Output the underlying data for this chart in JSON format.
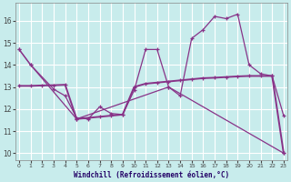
{
  "xlabel": "Windchill (Refroidissement éolien,°C)",
  "background_color": "#c8ecec",
  "grid_color": "#b8dada",
  "line_color": "#883388",
  "ylim": [
    9.7,
    16.8
  ],
  "xlim": [
    -0.3,
    23.3
  ],
  "yticks": [
    10,
    11,
    12,
    13,
    14,
    15,
    16
  ],
  "xticks": [
    0,
    1,
    2,
    3,
    4,
    5,
    6,
    7,
    8,
    9,
    10,
    11,
    12,
    13,
    14,
    15,
    16,
    17,
    18,
    19,
    20,
    21,
    22,
    23
  ],
  "line1_x": [
    0,
    1,
    3,
    4,
    5,
    6,
    7,
    8,
    9,
    10,
    11,
    12,
    13,
    14,
    15,
    16,
    17,
    18,
    19,
    20,
    21,
    22,
    23
  ],
  "line1_y": [
    14.7,
    14.0,
    12.9,
    12.6,
    11.6,
    11.55,
    12.1,
    11.8,
    11.75,
    12.85,
    14.7,
    14.7,
    13.0,
    12.6,
    15.2,
    15.6,
    16.2,
    16.1,
    16.3,
    14.0,
    13.6,
    13.5,
    11.7
  ],
  "line2_x": [
    0,
    1,
    5,
    13,
    23
  ],
  "line2_y": [
    14.7,
    14.0,
    11.55,
    13.0,
    10.0
  ],
  "line3_x": [
    0,
    1,
    2,
    3,
    4,
    5,
    6,
    7,
    8,
    9,
    10,
    11,
    12,
    13,
    14,
    15,
    16,
    17,
    18,
    19,
    20,
    21,
    22,
    23
  ],
  "line3_y": [
    13.05,
    13.05,
    13.07,
    13.08,
    13.1,
    11.55,
    11.6,
    11.65,
    11.7,
    11.75,
    13.0,
    13.15,
    13.2,
    13.25,
    13.3,
    13.35,
    13.4,
    13.42,
    13.45,
    13.48,
    13.5,
    13.5,
    13.5,
    10.0
  ]
}
